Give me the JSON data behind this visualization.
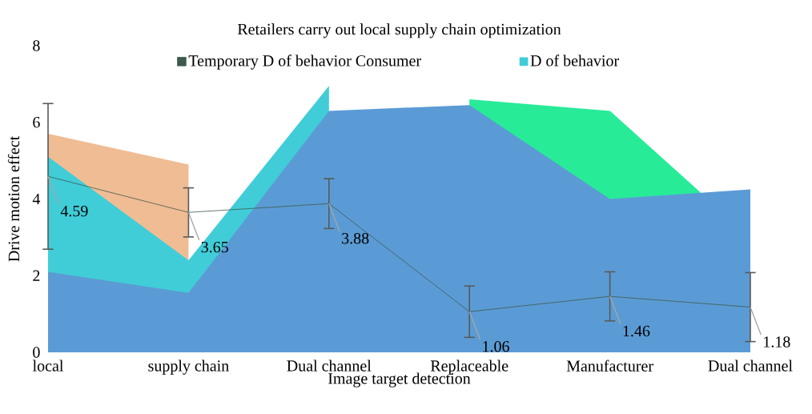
{
  "chart_data": {
    "type": "area",
    "title": "Retailers carry out local supply chain optimization",
    "xlabel": "Image target detection",
    "ylabel": "Drive motion effect",
    "categories": [
      "local",
      "supply chain",
      "Dual channel",
      "Replaceable",
      "Manufacturer",
      "Dual channel"
    ],
    "series": [
      {
        "color": "#f0bc94",
        "values": [
          5.7,
          4.9,
          null,
          null,
          null,
          null
        ]
      },
      {
        "color": "#28eb98",
        "values": [
          null,
          null,
          null,
          6.6,
          6.3,
          3.0
        ]
      },
      {
        "name": "D of behavior",
        "color": "#40cdd8",
        "values": [
          5.1,
          2.4,
          6.95,
          null,
          null,
          null
        ]
      },
      {
        "color": "#5b9bd5",
        "values": [
          2.1,
          1.55,
          6.3,
          6.45,
          4.0,
          4.25
        ]
      },
      {
        "name": "Temporary D of behavior Consumer",
        "type": "line",
        "color": "#3d5a4c",
        "values": [
          4.59,
          3.65,
          3.88,
          1.06,
          1.46,
          1.18
        ],
        "errors": [
          1.9,
          0.64,
          0.65,
          0.67,
          0.64,
          0.9
        ],
        "value_labels": [
          "4.59",
          "3.65",
          "3.88",
          "1.06",
          "1.46",
          "1.18"
        ]
      }
    ],
    "ylim": [
      0,
      8
    ],
    "yticks": [
      0,
      2,
      4,
      6,
      8
    ],
    "legend": "top"
  }
}
